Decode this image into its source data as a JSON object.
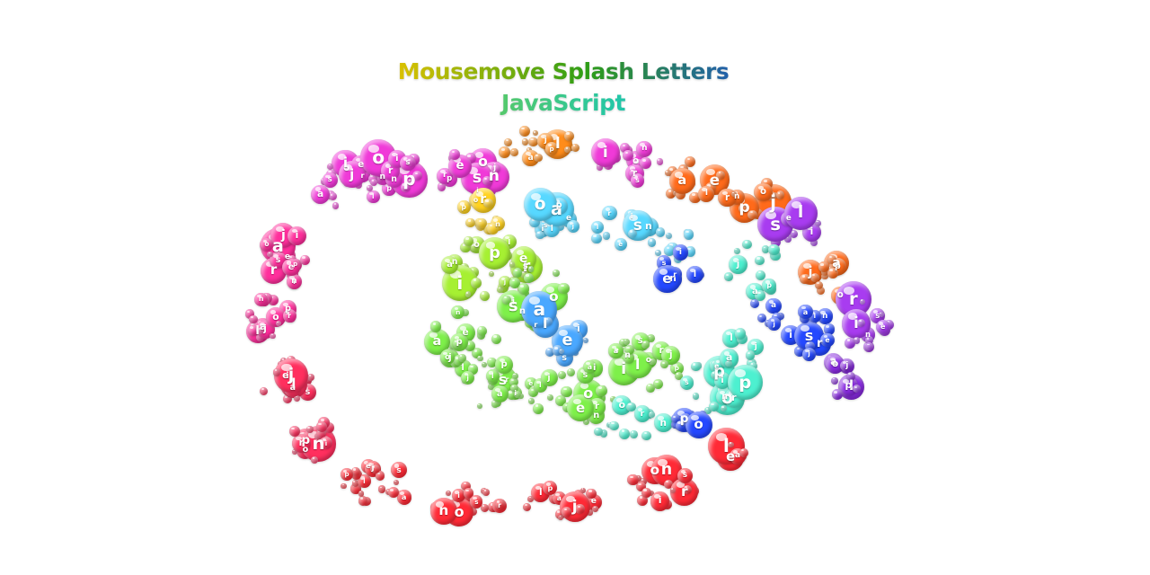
{
  "page": {
    "title_line1": "Mousemove Splash Letters",
    "title_line2": "JavaScript"
  },
  "colors": {
    "red": "#ff2a36",
    "crimson": "#ff2f5e",
    "pink": "#ff2f9c",
    "magenta": "#f03ad8",
    "purple": "#a83cf0",
    "violet": "#8a2be2",
    "orange": "#ff8c1a",
    "deep_orange": "#ff6a1a",
    "yellow": "#ffd21f",
    "lime": "#a6f032",
    "green": "#7ef04a",
    "aqua": "#4df0d0",
    "cyan": "#57d8ff",
    "sky": "#4aa8ff",
    "blue": "#2448ff"
  }
}
